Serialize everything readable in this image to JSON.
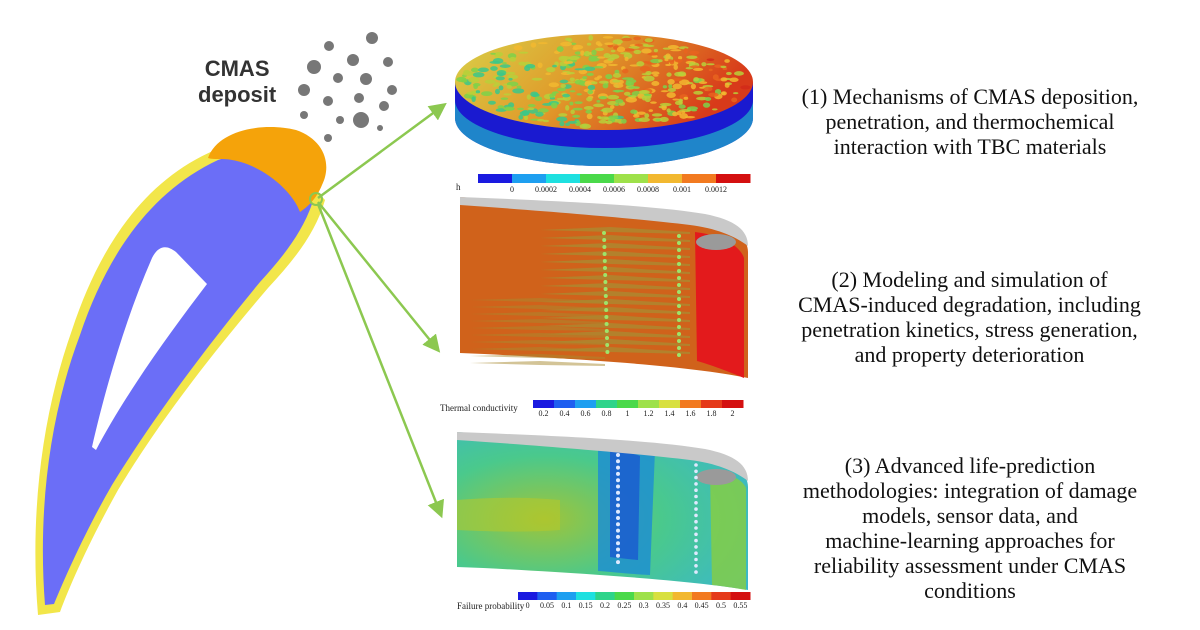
{
  "deposit_label": {
    "line1": "CMAS",
    "line2": "deposit"
  },
  "colors": {
    "blade_body": "#6B6EF7",
    "blade_coating": "#F2E64A",
    "deposit": "#F5A30A",
    "particles": "#777777",
    "arrows": "#8CC850"
  },
  "panels": [
    {
      "id": "deposition",
      "caption": [
        "(1) Mechanisms of CMAS deposition,",
        "penetration, and thermochemical",
        "interaction with TBC materials"
      ],
      "colorbar": {
        "title": "h",
        "ticks": [
          "0",
          "0.0002",
          "0.0004",
          "0.0006",
          "0.0008",
          "0.001",
          "0.0012"
        ]
      }
    },
    {
      "id": "degradation",
      "caption": [
        "(2) Modeling and simulation of",
        "CMAS-induced degradation, including",
        "penetration kinetics, stress generation,",
        "and property deterioration"
      ],
      "colorbar": {
        "title": "Thermal conductivity",
        "ticks": [
          "0.2",
          "0.4",
          "0.6",
          "0.8",
          "1",
          "1.2",
          "1.4",
          "1.6",
          "1.8",
          "2"
        ]
      }
    },
    {
      "id": "life-prediction",
      "caption": [
        "(3) Advanced life-prediction",
        "methodologies: integration of damage",
        "models, sensor data, and",
        "machine-learning approaches for",
        "reliability assessment under CMAS",
        "conditions"
      ],
      "colorbar": {
        "title": "Failure probability",
        "ticks": [
          "0",
          "0.05",
          "0.1",
          "0.15",
          "0.2",
          "0.25",
          "0.3",
          "0.35",
          "0.4",
          "0.45",
          "0.5",
          "0.55"
        ]
      }
    }
  ]
}
